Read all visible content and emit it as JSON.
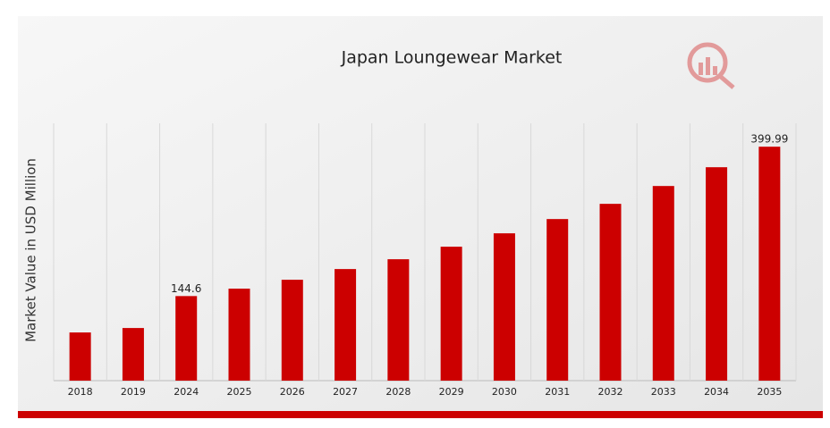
{
  "chart_data": {
    "type": "bar",
    "title": "Japan Loungewear Market",
    "y_label": "Market Value in USD Million",
    "categories": [
      "2018",
      "2019",
      "2024",
      "2025",
      "2026",
      "2027",
      "2028",
      "2029",
      "2030",
      "2031",
      "2032",
      "2033",
      "2034",
      "2035"
    ],
    "values": [
      82.4,
      90,
      144.6,
      157.3,
      172.5,
      190.8,
      207.6,
      229,
      251.9,
      276.3,
      302.3,
      332.8,
      364.9,
      399.99
    ],
    "value_labels": [
      null,
      null,
      "144.6",
      null,
      null,
      null,
      null,
      null,
      null,
      null,
      null,
      null,
      null,
      "399.99"
    ],
    "color": "#cc0000",
    "ylim": [
      0,
      440
    ],
    "grid": true
  }
}
